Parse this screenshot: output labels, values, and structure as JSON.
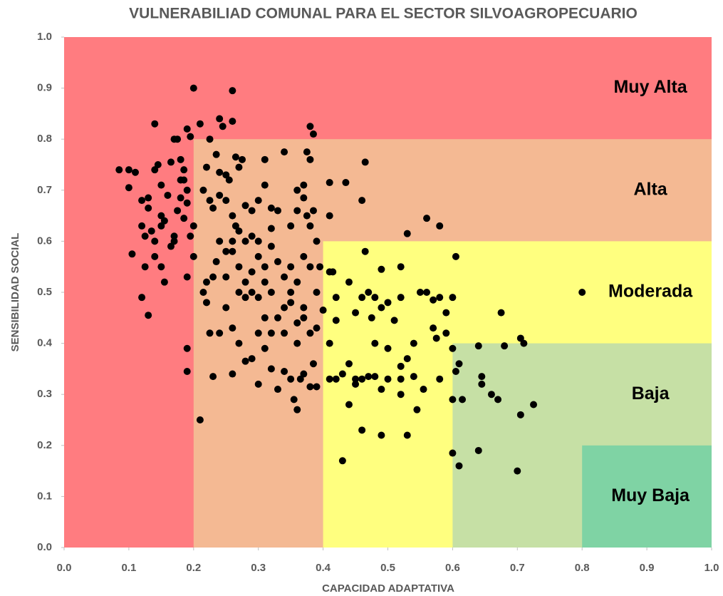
{
  "chart_data": {
    "type": "scatter",
    "title": "VULNERABILIAD COMUNAL PARA EL SECTOR SILVOAGROPECUARIO",
    "xlabel": "CAPACIDAD ADAPTATIVA",
    "ylabel": "SENSIBILIDAD SOCIAL",
    "color": "#000000",
    "xlim": [
      0,
      1
    ],
    "ylim": [
      0,
      1
    ],
    "xticks": [
      {
        "value": 0,
        "label": "0.0"
      },
      0.1,
      0.2,
      0.3,
      0.4,
      0.5,
      0.6,
      0.7,
      0.8,
      0.9,
      {
        "value": 1,
        "label": "1.0"
      }
    ],
    "yticks": [
      {
        "value": 0,
        "label": "0.0"
      },
      0.1,
      0.2,
      0.3,
      0.4,
      0.5,
      0.6,
      0.7,
      0.8,
      0.9,
      {
        "value": 1,
        "label": "1.0"
      }
    ],
    "zones": [
      {
        "name": "Muy Alta",
        "color": "#ff7c80",
        "x": [
          0,
          1
        ],
        "y": [
          0,
          1
        ]
      },
      {
        "name": "Alta",
        "color": "#f4b993",
        "x": [
          0.2,
          1
        ],
        "y": [
          0,
          0.8
        ]
      },
      {
        "name": "Moderada",
        "color": "#ffff7f",
        "x": [
          0.4,
          1
        ],
        "y": [
          0,
          0.6
        ]
      },
      {
        "name": "Baja",
        "color": "#c6e0a5",
        "x": [
          0.6,
          1
        ],
        "y": [
          0,
          0.4
        ]
      },
      {
        "name": "Muy Baja",
        "color": "#7fd3a4",
        "x": [
          0.8,
          1
        ],
        "y": [
          0,
          0.2
        ]
      }
    ],
    "x": [
      0.085,
      0.1,
      0.11,
      0.1,
      0.12,
      0.13,
      0.13,
      0.14,
      0.14,
      0.145,
      0.15,
      0.15,
      0.155,
      0.16,
      0.165,
      0.17,
      0.175,
      0.18,
      0.185,
      0.185,
      0.19,
      0.195,
      0.2,
      0.19,
      0.18,
      0.175,
      0.185,
      0.19,
      0.2,
      0.195,
      0.17,
      0.165,
      0.15,
      0.155,
      0.14,
      0.125,
      0.12,
      0.125,
      0.105,
      0.12,
      0.13,
      0.14,
      0.15,
      0.135,
      0.19,
      0.19,
      0.19,
      0.17,
      0.2,
      0.18,
      0.21,
      0.21,
      0.225,
      0.24,
      0.245,
      0.26,
      0.26,
      0.235,
      0.25,
      0.24,
      0.255,
      0.265,
      0.27,
      0.275,
      0.22,
      0.215,
      0.225,
      0.23,
      0.24,
      0.25,
      0.26,
      0.265,
      0.28,
      0.29,
      0.3,
      0.31,
      0.32,
      0.33,
      0.34,
      0.31,
      0.36,
      0.37,
      0.375,
      0.38,
      0.385,
      0.38,
      0.37,
      0.36,
      0.375,
      0.38,
      0.385,
      0.39,
      0.35,
      0.32,
      0.3,
      0.29,
      0.28,
      0.27,
      0.26,
      0.25,
      0.24,
      0.235,
      0.23,
      0.22,
      0.215,
      0.22,
      0.225,
      0.24,
      0.25,
      0.26,
      0.27,
      0.28,
      0.29,
      0.3,
      0.31,
      0.32,
      0.33,
      0.34,
      0.35,
      0.36,
      0.37,
      0.38,
      0.39,
      0.39,
      0.38,
      0.37,
      0.36,
      0.35,
      0.34,
      0.33,
      0.32,
      0.31,
      0.3,
      0.29,
      0.28,
      0.27,
      0.26,
      0.27,
      0.28,
      0.29,
      0.3,
      0.31,
      0.32,
      0.33,
      0.34,
      0.35,
      0.36,
      0.355,
      0.365,
      0.37,
      0.38,
      0.39,
      0.385,
      0.36,
      0.34,
      0.3,
      0.26,
      0.23,
      0.25,
      0.31,
      0.35,
      0.37,
      0.32,
      0.395,
      0.4,
      0.41,
      0.41,
      0.415,
      0.42,
      0.42,
      0.41,
      0.41,
      0.435,
      0.46,
      0.465,
      0.465,
      0.44,
      0.45,
      0.46,
      0.47,
      0.48,
      0.49,
      0.49,
      0.5,
      0.51,
      0.52,
      0.52,
      0.53,
      0.56,
      0.58,
      0.55,
      0.56,
      0.57,
      0.58,
      0.59,
      0.6,
      0.605,
      0.59,
      0.57,
      0.54,
      0.53,
      0.52,
      0.5,
      0.49,
      0.48,
      0.47,
      0.46,
      0.45,
      0.44,
      0.43,
      0.42,
      0.41,
      0.44,
      0.46,
      0.49,
      0.53,
      0.545,
      0.555,
      0.52,
      0.475,
      0.48,
      0.5,
      0.43,
      0.45,
      0.52,
      0.54,
      0.58,
      0.6,
      0.6,
      0.575,
      0.6,
      0.61,
      0.605,
      0.61,
      0.615,
      0.64,
      0.64,
      0.645,
      0.645,
      0.66,
      0.67,
      0.675,
      0.68,
      0.7,
      0.705,
      0.71,
      0.705,
      0.725,
      0.8
    ],
    "values": [
      0.74,
      0.74,
      0.735,
      0.705,
      0.68,
      0.685,
      0.665,
      0.83,
      0.74,
      0.75,
      0.71,
      0.65,
      0.64,
      0.69,
      0.755,
      0.8,
      0.8,
      0.76,
      0.74,
      0.72,
      0.82,
      0.805,
      0.9,
      0.7,
      0.685,
      0.66,
      0.645,
      0.675,
      0.63,
      0.61,
      0.61,
      0.59,
      0.55,
      0.52,
      0.57,
      0.61,
      0.63,
      0.55,
      0.575,
      0.49,
      0.455,
      0.6,
      0.63,
      0.62,
      0.53,
      0.39,
      0.345,
      0.6,
      0.57,
      0.72,
      0.25,
      0.83,
      0.8,
      0.84,
      0.825,
      0.895,
      0.835,
      0.77,
      0.73,
      0.735,
      0.72,
      0.765,
      0.745,
      0.76,
      0.745,
      0.7,
      0.68,
      0.665,
      0.69,
      0.68,
      0.65,
      0.63,
      0.67,
      0.66,
      0.68,
      0.71,
      0.665,
      0.66,
      0.775,
      0.76,
      0.7,
      0.71,
      0.775,
      0.825,
      0.81,
      0.76,
      0.685,
      0.66,
      0.65,
      0.63,
      0.66,
      0.6,
      0.63,
      0.625,
      0.6,
      0.61,
      0.6,
      0.62,
      0.58,
      0.58,
      0.6,
      0.56,
      0.53,
      0.52,
      0.5,
      0.48,
      0.42,
      0.42,
      0.47,
      0.43,
      0.5,
      0.49,
      0.5,
      0.49,
      0.52,
      0.5,
      0.45,
      0.47,
      0.48,
      0.44,
      0.45,
      0.42,
      0.43,
      0.5,
      0.55,
      0.57,
      0.52,
      0.55,
      0.53,
      0.56,
      0.59,
      0.55,
      0.57,
      0.54,
      0.52,
      0.55,
      0.6,
      0.4,
      0.365,
      0.37,
      0.32,
      0.39,
      0.35,
      0.31,
      0.345,
      0.33,
      0.27,
      0.29,
      0.33,
      0.34,
      0.315,
      0.315,
      0.36,
      0.4,
      0.42,
      0.42,
      0.34,
      0.335,
      0.53,
      0.45,
      0.5,
      0.47,
      0.42,
      0.55,
      0.465,
      0.4,
      0.54,
      0.54,
      0.49,
      0.445,
      0.65,
      0.715,
      0.715,
      0.68,
      0.755,
      0.58,
      0.52,
      0.46,
      0.49,
      0.5,
      0.49,
      0.545,
      0.47,
      0.48,
      0.445,
      0.49,
      0.55,
      0.615,
      0.645,
      0.63,
      0.5,
      0.5,
      0.485,
      0.49,
      0.46,
      0.49,
      0.57,
      0.42,
      0.43,
      0.4,
      0.37,
      0.355,
      0.33,
      0.31,
      0.335,
      0.335,
      0.33,
      0.33,
      0.36,
      0.34,
      0.33,
      0.33,
      0.28,
      0.23,
      0.22,
      0.22,
      0.27,
      0.31,
      0.3,
      0.45,
      0.4,
      0.39,
      0.17,
      0.32,
      0.33,
      0.335,
      0.33,
      0.39,
      0.29,
      0.41,
      0.185,
      0.16,
      0.345,
      0.36,
      0.29,
      0.395,
      0.19,
      0.335,
      0.32,
      0.3,
      0.29,
      0.46,
      0.395,
      0.15,
      0.41,
      0.4,
      0.26,
      0.28,
      0.5
    ]
  }
}
